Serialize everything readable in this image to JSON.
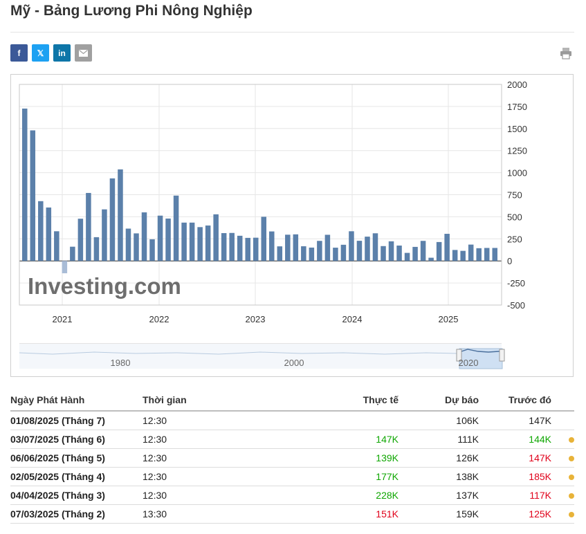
{
  "page": {
    "title": "Mỹ - Bảng Lương Phi Nông Nghiệp"
  },
  "share": {
    "facebook": "f",
    "twitter": "𝕏",
    "linkedin": "in",
    "colors": {
      "facebook": "#3b5998",
      "twitter": "#1da1f2",
      "linkedin": "#0e76a8",
      "email": "#a0a0a0"
    }
  },
  "chart_data": {
    "type": "bar",
    "title": "",
    "xlabel": "",
    "ylabel": "",
    "ylim": [
      -500,
      2000
    ],
    "yticks": [
      "2000",
      "1750",
      "1500",
      "1250",
      "1000",
      "750",
      "500",
      "250",
      "0",
      "-250",
      "-500"
    ],
    "xticks": [
      "2021",
      "2022",
      "2023",
      "2024",
      "2025"
    ],
    "navigator_ticks": [
      "1980",
      "2000",
      "2020"
    ],
    "watermark": "Investing.com",
    "grid": true,
    "colors": {
      "bar": "#5b80aa",
      "negative_bar": "#a9bcd6"
    },
    "values": [
      1726,
      1479,
      677,
      605,
      336,
      -140,
      161,
      478,
      770,
      269,
      584,
      935,
      1037,
      366,
      312,
      550,
      245,
      513,
      480,
      740,
      434,
      434,
      383,
      401,
      528,
      315,
      317,
      285,
      261,
      263,
      500,
      334,
      165,
      297,
      301,
      166,
      151,
      227,
      296,
      150,
      183,
      336,
      228,
      275,
      313,
      168,
      222,
      174,
      91,
      159,
      227,
      36,
      214,
      307,
      124,
      114,
      185,
      144,
      147,
      147
    ]
  },
  "table": {
    "headers": {
      "date": "Ngày Phát Hành",
      "time": "Thời gian",
      "actual": "Thực tế",
      "forecast": "Dự báo",
      "previous": "Trước đó"
    },
    "rows": [
      {
        "date": "01/08/2025 (Tháng 7)",
        "time": "12:30",
        "actual": "",
        "forecast": "106K",
        "previous": "147K",
        "actual_color": "#222222",
        "previous_color": "#222222",
        "dot": false
      },
      {
        "date": "03/07/2025 (Tháng 6)",
        "time": "12:30",
        "actual": "147K",
        "forecast": "111K",
        "previous": "144K",
        "actual_color": "#0ea600",
        "previous_color": "#0ea600",
        "dot": true
      },
      {
        "date": "06/06/2025 (Tháng 5)",
        "time": "12:30",
        "actual": "139K",
        "forecast": "126K",
        "previous": "147K",
        "actual_color": "#0ea600",
        "previous_color": "#e0001a",
        "dot": true
      },
      {
        "date": "02/05/2025 (Tháng 4)",
        "time": "12:30",
        "actual": "177K",
        "forecast": "138K",
        "previous": "185K",
        "actual_color": "#0ea600",
        "previous_color": "#e0001a",
        "dot": true
      },
      {
        "date": "04/04/2025 (Tháng 3)",
        "time": "12:30",
        "actual": "228K",
        "forecast": "137K",
        "previous": "117K",
        "actual_color": "#0ea600",
        "previous_color": "#e0001a",
        "dot": true
      },
      {
        "date": "07/03/2025 (Tháng 2)",
        "time": "13:30",
        "actual": "151K",
        "forecast": "159K",
        "previous": "125K",
        "actual_color": "#e0001a",
        "previous_color": "#e0001a",
        "dot": true
      }
    ],
    "dot_color": "#e8b339"
  }
}
